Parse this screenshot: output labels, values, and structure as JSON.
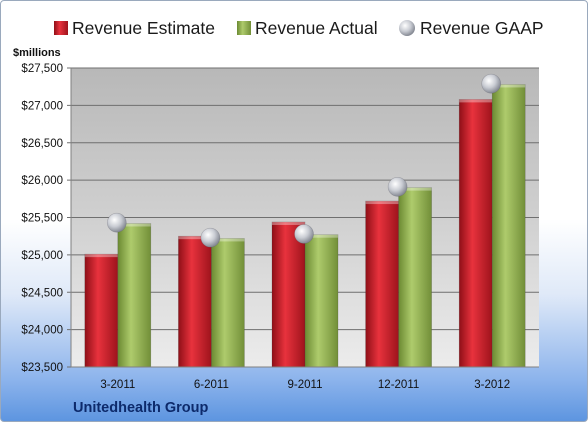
{
  "chart_data": {
    "type": "bar",
    "title": "",
    "ylabel": "$millions",
    "xlabel": "",
    "categories": [
      "3-2011",
      "6-2011",
      "9-2011",
      "12-2011",
      "3-2012"
    ],
    "series": [
      {
        "name": "Revenue Estimate",
        "kind": "bar",
        "color": "#d2202e",
        "values": [
          25010,
          25250,
          25440,
          25720,
          27080
        ]
      },
      {
        "name": "Revenue Actual",
        "kind": "bar",
        "color": "#9bbb59",
        "values": [
          25420,
          25220,
          25270,
          25900,
          27280
        ]
      },
      {
        "name": "Revenue GAAP",
        "kind": "marker",
        "color": "#c4c8d0",
        "values": [
          25430,
          25230,
          25280,
          25910,
          27290
        ]
      }
    ],
    "ylim": [
      23500,
      27500
    ],
    "yticks": [
      "$23,500",
      "$24,000",
      "$24,500",
      "$25,000",
      "$25,500",
      "$26,000",
      "$26,500",
      "$27,000",
      "$27,500"
    ],
    "grid": true,
    "legend_position": "top",
    "footer": "Unitedhealth Group"
  }
}
